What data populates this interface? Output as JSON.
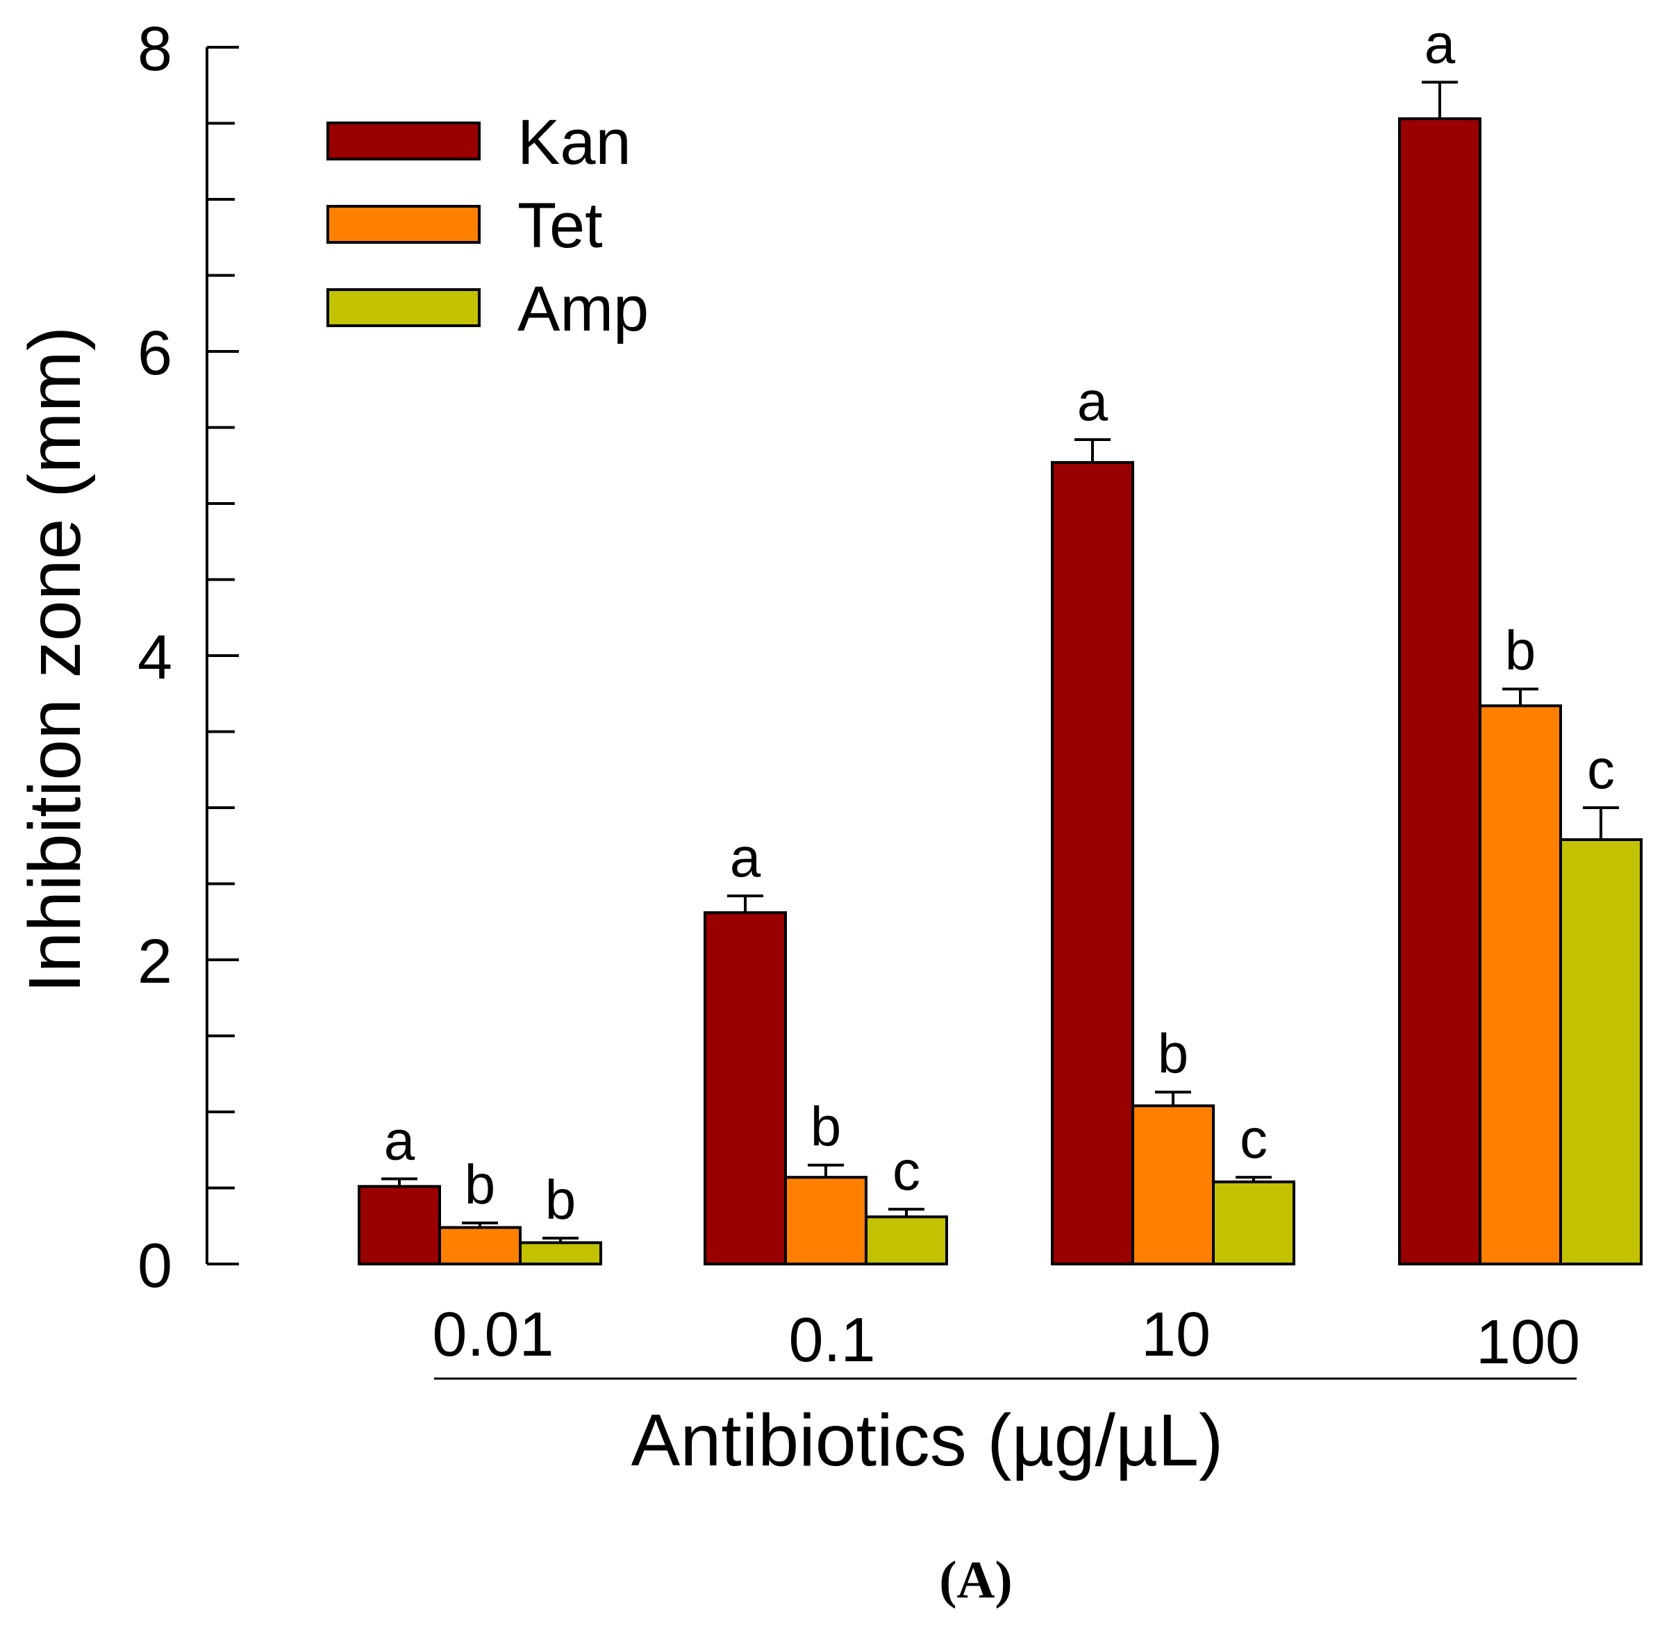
{
  "chart_data": {
    "type": "bar",
    "title": "",
    "panel_label": "(A)",
    "xlabel": "Antibiotics (µg/µL)",
    "ylabel": "Inhibition zone (mm)",
    "ylim": [
      0,
      8
    ],
    "yticks": [
      "0",
      "2",
      "4",
      "6",
      "8"
    ],
    "grid": false,
    "legend_position": "top-left",
    "categories": [
      "0.01",
      "0.1",
      "10",
      "100"
    ],
    "series": [
      {
        "name": "Kan",
        "color": "#990000",
        "values": [
          0.51,
          2.31,
          5.27,
          7.53
        ],
        "errors": [
          0.05,
          0.11,
          0.15,
          0.24
        ],
        "letters": [
          "a",
          "a",
          "a",
          "a"
        ]
      },
      {
        "name": "Tet",
        "color": "#ff8000",
        "values": [
          0.24,
          0.57,
          1.04,
          3.67
        ],
        "errors": [
          0.03,
          0.08,
          0.09,
          0.11
        ],
        "letters": [
          "b",
          "b",
          "b",
          "b"
        ]
      },
      {
        "name": "Amp",
        "color": "#c2c200",
        "values": [
          0.14,
          0.31,
          0.54,
          2.79
        ],
        "errors": [
          0.03,
          0.05,
          0.03,
          0.21
        ],
        "letters": [
          "b",
          "c",
          "c",
          "c"
        ]
      }
    ]
  }
}
